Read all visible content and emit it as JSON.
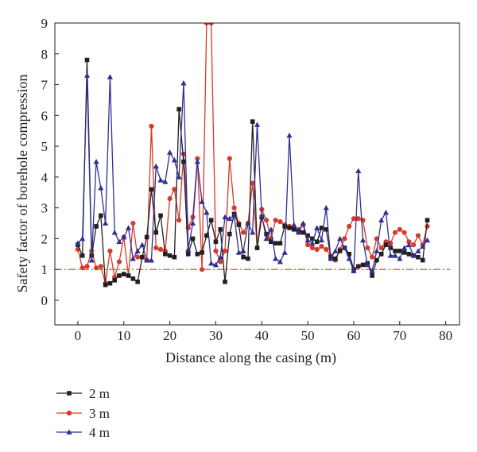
{
  "chart_data": {
    "type": "line",
    "xlabel": "Distance along the casing (m)",
    "ylabel": "Safety factor of borehole compression",
    "xlim": [
      -5,
      83
    ],
    "ylim": [
      -0.8,
      9
    ],
    "xticks": [
      0,
      10,
      20,
      30,
      40,
      50,
      60,
      70,
      80
    ],
    "yticks": [
      0,
      1,
      2,
      3,
      4,
      5,
      6,
      7,
      8,
      9
    ],
    "reference_line": {
      "y": 1,
      "color": "#d7392b",
      "style": "dash-dot"
    },
    "legend_position": "bottom-left",
    "series": [
      {
        "name": "2 m",
        "color": "#231f20",
        "marker": "square",
        "x": [
          0,
          1,
          2,
          3,
          4,
          5,
          6,
          7,
          8,
          9,
          10,
          11,
          12,
          13,
          14,
          15,
          16,
          17,
          18,
          19,
          20,
          21,
          22,
          23,
          24,
          25,
          26,
          27,
          28,
          29,
          30,
          31,
          32,
          33,
          34,
          35,
          36,
          37,
          38,
          39,
          40,
          41,
          42,
          43,
          44,
          45,
          46,
          47,
          48,
          49,
          50,
          51,
          52,
          53,
          54,
          55,
          56,
          57,
          58,
          59,
          60,
          61,
          62,
          63,
          64,
          65,
          66,
          67,
          68,
          69,
          70,
          71,
          72,
          73,
          74,
          75,
          76
        ],
        "y": [
          1.8,
          1.45,
          7.8,
          1.45,
          2.4,
          2.75,
          0.5,
          0.55,
          0.65,
          0.8,
          0.85,
          0.8,
          0.7,
          0.6,
          1.4,
          2.05,
          3.6,
          2.2,
          2.75,
          1.5,
          1.45,
          1.4,
          6.2,
          4.5,
          1.5,
          2.0,
          1.5,
          1.55,
          2.1,
          2.6,
          1.9,
          2.3,
          0.6,
          2.15,
          2.8,
          2.45,
          1.4,
          1.35,
          5.8,
          1.7,
          2.7,
          2.15,
          1.9,
          1.85,
          1.85,
          2.4,
          2.35,
          2.3,
          2.25,
          2.2,
          2.1,
          2.0,
          1.9,
          2.35,
          2.3,
          1.4,
          1.35,
          1.6,
          1.7,
          1.5,
          1.0,
          1.1,
          1.15,
          1.2,
          0.8,
          1.3,
          1.5,
          1.8,
          1.7,
          1.6,
          1.6,
          1.55,
          1.5,
          1.45,
          1.4,
          1.3,
          2.6
        ]
      },
      {
        "name": "3 m",
        "color": "#d7392b",
        "marker": "circle",
        "x": [
          0,
          1,
          2,
          3,
          4,
          5,
          6,
          7,
          8,
          9,
          10,
          11,
          12,
          13,
          14,
          15,
          16,
          17,
          18,
          19,
          20,
          21,
          22,
          23,
          24,
          25,
          26,
          27,
          28,
          29,
          30,
          31,
          32,
          33,
          34,
          35,
          36,
          37,
          38,
          39,
          40,
          41,
          42,
          43,
          44,
          45,
          46,
          47,
          48,
          49,
          50,
          51,
          52,
          53,
          54,
          55,
          56,
          57,
          58,
          59,
          60,
          61,
          62,
          63,
          64,
          65,
          66,
          67,
          68,
          69,
          70,
          71,
          72,
          73,
          74,
          75,
          76
        ],
        "y": [
          1.65,
          1.05,
          1.1,
          1.6,
          1.05,
          1.1,
          0.55,
          1.6,
          0.75,
          1.25,
          2.05,
          0.8,
          2.5,
          1.4,
          1.4,
          1.3,
          5.65,
          1.7,
          1.65,
          1.6,
          3.3,
          3.6,
          2.6,
          4.75,
          2.35,
          2.7,
          4.6,
          1.0,
          9.0,
          9.0,
          1.6,
          1.25,
          1.6,
          4.6,
          3.0,
          2.5,
          2.2,
          2.5,
          3.8,
          1.7,
          2.95,
          2.6,
          2.0,
          2.6,
          2.55,
          2.45,
          2.4,
          2.35,
          2.3,
          2.45,
          1.8,
          1.7,
          1.65,
          1.75,
          1.65,
          1.45,
          1.3,
          1.65,
          2.0,
          2.4,
          2.65,
          2.65,
          2.6,
          1.7,
          1.4,
          2.0,
          1.7,
          1.9,
          1.85,
          2.2,
          2.3,
          2.2,
          1.9,
          1.8,
          2.1,
          1.8,
          2.4
        ]
      },
      {
        "name": "4 m",
        "color": "#2e3192",
        "marker": "triangle",
        "x": [
          0,
          1,
          2,
          3,
          4,
          5,
          6,
          7,
          8,
          9,
          10,
          11,
          12,
          13,
          14,
          15,
          16,
          17,
          18,
          19,
          20,
          21,
          22,
          23,
          24,
          25,
          26,
          27,
          28,
          29,
          30,
          31,
          32,
          33,
          34,
          35,
          36,
          37,
          38,
          39,
          40,
          41,
          42,
          43,
          44,
          45,
          46,
          47,
          48,
          49,
          50,
          51,
          52,
          53,
          54,
          55,
          56,
          57,
          58,
          59,
          60,
          61,
          62,
          63,
          64,
          65,
          66,
          67,
          68,
          69,
          70,
          71,
          72,
          73,
          74,
          75,
          76
        ],
        "y": [
          1.85,
          2.0,
          7.3,
          1.3,
          4.5,
          3.65,
          2.5,
          7.25,
          2.2,
          1.9,
          2.05,
          2.35,
          1.35,
          1.6,
          1.8,
          1.3,
          1.3,
          4.35,
          3.9,
          3.85,
          4.8,
          4.55,
          4.0,
          7.05,
          1.65,
          2.5,
          4.5,
          3.2,
          2.85,
          1.2,
          1.15,
          1.4,
          2.7,
          2.65,
          2.75,
          1.55,
          1.6,
          2.5,
          2.2,
          5.7,
          2.75,
          2.0,
          2.3,
          1.35,
          1.25,
          1.55,
          5.35,
          2.45,
          2.2,
          2.5,
          1.95,
          1.85,
          2.35,
          1.95,
          3.0,
          1.35,
          1.6,
          2.0,
          1.7,
          1.35,
          0.95,
          4.2,
          1.95,
          1.15,
          0.95,
          1.6,
          2.6,
          2.85,
          1.45,
          1.45,
          1.35,
          1.7,
          1.8,
          1.45,
          1.6,
          1.75,
          1.95
        ]
      }
    ],
    "legend": [
      {
        "label": "2 m"
      },
      {
        "label": "3 m"
      },
      {
        "label": "4 m"
      }
    ]
  }
}
